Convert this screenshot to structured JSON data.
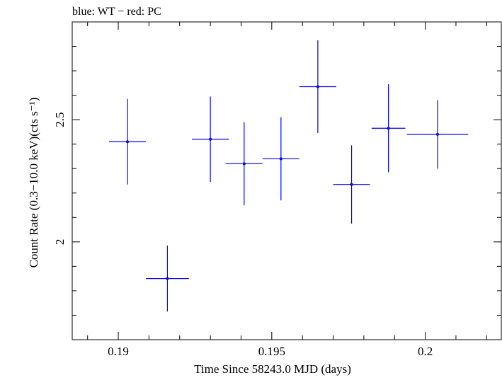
{
  "chart_data": {
    "type": "scatter",
    "title": "blue: WT − red: PC",
    "xlabel": "Time Since 58243.0 MJD (days)",
    "ylabel": "Count Rate (0.3−10.0 keV)(cts s⁻¹)",
    "xlim": [
      0.1885,
      0.2025
    ],
    "ylim": [
      1.6,
      2.9
    ],
    "x_ticks": [
      {
        "value": 0.19,
        "label": "0.19"
      },
      {
        "value": 0.195,
        "label": "0.195"
      },
      {
        "value": 0.2,
        "label": "0.2"
      }
    ],
    "y_ticks": [
      {
        "value": 2.0,
        "label": "2"
      },
      {
        "value": 2.5,
        "label": "2.5"
      }
    ],
    "grid": false,
    "series": [
      {
        "name": "WT",
        "color": "#0000ff",
        "points": [
          {
            "x": 0.1903,
            "xerr": 0.0006,
            "y": 2.41,
            "yerr": 0.175
          },
          {
            "x": 0.1916,
            "xerr": 0.0007,
            "y": 1.85,
            "yerr": 0.135
          },
          {
            "x": 0.193,
            "xerr": 0.0006,
            "y": 2.42,
            "yerr": 0.175
          },
          {
            "x": 0.1941,
            "xerr": 0.0006,
            "y": 2.32,
            "yerr": 0.17
          },
          {
            "x": 0.1953,
            "xerr": 0.0006,
            "y": 2.34,
            "yerr": 0.17
          },
          {
            "x": 0.1965,
            "xerr": 0.0006,
            "y": 2.635,
            "yerr": 0.19
          },
          {
            "x": 0.1976,
            "xerr": 0.0006,
            "y": 2.235,
            "yerr": 0.16
          },
          {
            "x": 0.1988,
            "xerr": 0.00055,
            "y": 2.465,
            "yerr": 0.18
          },
          {
            "x": 0.2004,
            "xerr": 0.001,
            "y": 2.44,
            "yerr": 0.14
          }
        ]
      }
    ]
  }
}
